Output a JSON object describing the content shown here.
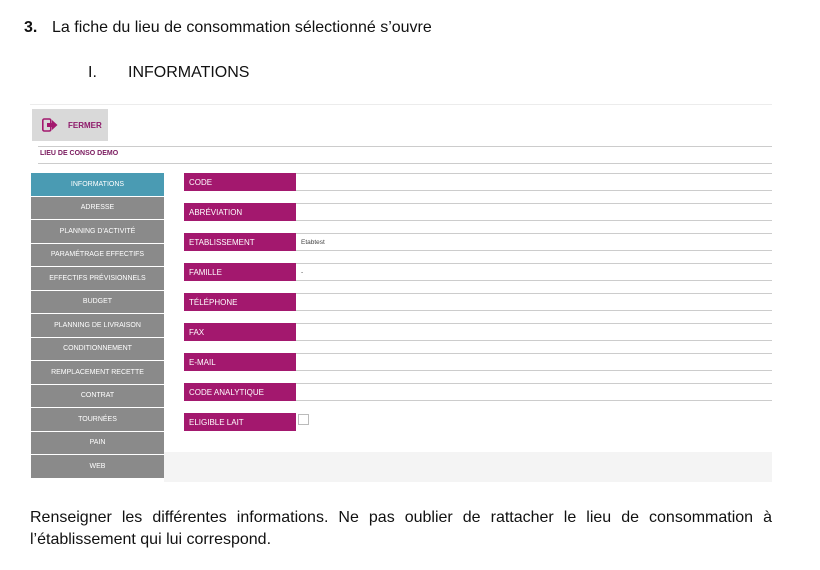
{
  "step": {
    "number": "3.",
    "text": "La fiche du lieu de consommation sélectionné s’ouvre"
  },
  "section": {
    "numeral": "I.",
    "title": "INFORMATIONS"
  },
  "app": {
    "close_label": "FERMER",
    "record_title": "LIEU DE CONSO DEMO",
    "nav_items": [
      {
        "label": "INFORMATIONS"
      },
      {
        "label": "ADRESSE"
      },
      {
        "label": "PLANNING D'ACTIVITÉ"
      },
      {
        "label": "PARAMÉTRAGE EFFECTIFS"
      },
      {
        "label": "EFFECTIFS PRÉVISIONNELS"
      },
      {
        "label": "BUDGET"
      },
      {
        "label": "PLANNING DE LIVRAISON"
      },
      {
        "label": "CONDITIONNEMENT"
      },
      {
        "label": "REMPLACEMENT RECETTE"
      },
      {
        "label": "CONTRAT"
      },
      {
        "label": "TOURNÉES"
      },
      {
        "label": "PAIN"
      },
      {
        "label": "WEB"
      }
    ],
    "fields": [
      {
        "label": "CODE",
        "value": ""
      },
      {
        "label": "ABRÉVIATION",
        "value": ""
      },
      {
        "label": "ETABLISSEMENT",
        "value": "Etabtest"
      },
      {
        "label": "FAMILLE",
        "value": "-"
      },
      {
        "label": "TÉLÉPHONE",
        "value": ""
      },
      {
        "label": "FAX",
        "value": ""
      },
      {
        "label": "E-MAIL",
        "value": ""
      },
      {
        "label": "CODE ANALYTIQUE",
        "value": ""
      },
      {
        "label": "ELIGIBLE LAIT",
        "value": ""
      }
    ],
    "colors": {
      "accent": "#a3186e",
      "active_nav": "#4a9bb3",
      "nav": "#8a8a8a"
    }
  },
  "note": "Renseigner les différentes informations. Ne pas oublier de rattacher le lieu de consommation à l’établissement qui lui correspond."
}
